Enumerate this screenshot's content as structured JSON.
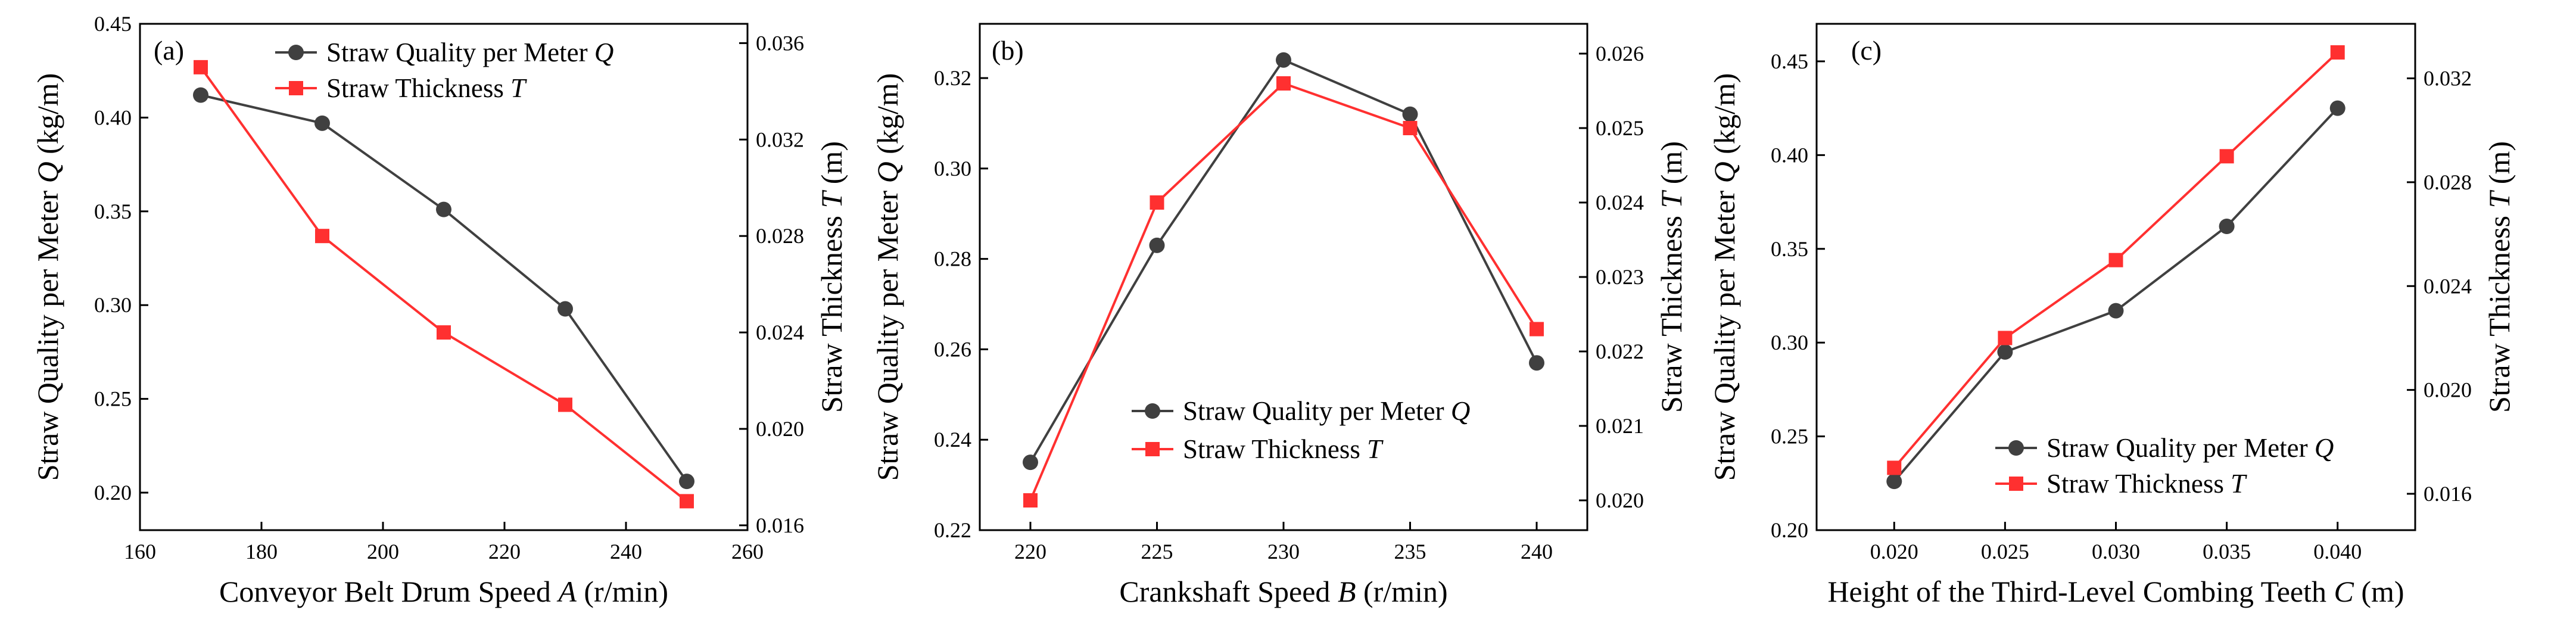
{
  "colors": {
    "quality": "#404040",
    "thickness": "#ff3030"
  },
  "chart_data": [
    {
      "type": "line",
      "panel_label": "(a)",
      "x": [
        170,
        190,
        210,
        230,
        250
      ],
      "xlabel": "Conveyor Belt Drum Speed ",
      "xlabel_var": "A",
      "xlabel_unit": " (r/min)",
      "xlim": [
        160,
        260
      ],
      "xticks": [
        160,
        180,
        200,
        220,
        240,
        260
      ],
      "xtick_labels": [
        "160",
        "180",
        "200",
        "220",
        "240",
        "260"
      ],
      "ylabel": "Straw Quality per Meter ",
      "ylabel_var": "Q",
      "ylabel_unit": " (kg/m)",
      "ylim": [
        0.18,
        0.45
      ],
      "yticks": [
        0.2,
        0.25,
        0.3,
        0.35,
        0.4,
        0.45
      ],
      "ytick_labels": [
        "0.20",
        "0.25",
        "0.30",
        "0.35",
        "0.40",
        "0.45"
      ],
      "y2label": "Straw Thickness ",
      "y2label_var": "T",
      "y2label_unit": " (m)",
      "y2lim": [
        0.0158,
        0.0368
      ],
      "y2ticks": [
        0.016,
        0.02,
        0.024,
        0.028,
        0.032,
        0.036
      ],
      "y2tick_labels": [
        "0.016",
        "0.020",
        "0.024",
        "0.028",
        "0.032",
        "0.036"
      ],
      "legend_position": "top-right",
      "series": [
        {
          "name": "Straw Quality per Meter ",
          "var": "Q",
          "axis": "left",
          "marker": "circle",
          "values": [
            0.412,
            0.397,
            0.351,
            0.298,
            0.206
          ]
        },
        {
          "name": "Straw Thickness ",
          "var": "T",
          "axis": "right",
          "marker": "square",
          "values": [
            0.035,
            0.028,
            0.024,
            0.021,
            0.017
          ]
        }
      ]
    },
    {
      "type": "line",
      "panel_label": "(b)",
      "x": [
        220,
        225,
        230,
        235,
        240
      ],
      "xlabel": "Crankshaft Speed ",
      "xlabel_var": "B",
      "xlabel_unit": " (r/min)",
      "xlim": [
        218,
        242
      ],
      "xticks": [
        220,
        225,
        230,
        235,
        240
      ],
      "xtick_labels": [
        "220",
        "225",
        "230",
        "235",
        "240"
      ],
      "ylabel": "Straw Quality per Meter ",
      "ylabel_var": "Q",
      "ylabel_unit": " (kg/m)",
      "ylim": [
        0.22,
        0.332
      ],
      "yticks": [
        0.22,
        0.24,
        0.26,
        0.28,
        0.3,
        0.32
      ],
      "ytick_labels": [
        "0.22",
        "0.24",
        "0.26",
        "0.28",
        "0.30",
        "0.32"
      ],
      "y2label": "Straw Thickness ",
      "y2label_var": "T",
      "y2label_unit": " (m)",
      "y2lim": [
        0.0196,
        0.0264
      ],
      "y2ticks": [
        0.02,
        0.021,
        0.022,
        0.023,
        0.024,
        0.025,
        0.026
      ],
      "y2tick_labels": [
        "0.020",
        "0.021",
        "0.022",
        "0.023",
        "0.024",
        "0.025",
        "0.026"
      ],
      "legend_position": "bottom-right",
      "series": [
        {
          "name": "Straw Quality per Meter ",
          "var": "Q",
          "axis": "left",
          "marker": "circle",
          "values": [
            0.235,
            0.283,
            0.324,
            0.312,
            0.257
          ]
        },
        {
          "name": "Straw Thickness ",
          "var": "T",
          "axis": "right",
          "marker": "square",
          "values": [
            0.02,
            0.024,
            0.0256,
            0.025,
            0.0223
          ]
        }
      ]
    },
    {
      "type": "line",
      "panel_label": "(c)",
      "x": [
        0.02,
        0.025,
        0.03,
        0.035,
        0.04
      ],
      "xlabel": "Height of the Third-Level Combing Teeth ",
      "xlabel_var": "C",
      "xlabel_unit": " (m)",
      "xlim": [
        0.0165,
        0.0435
      ],
      "xticks": [
        0.02,
        0.025,
        0.03,
        0.035,
        0.04
      ],
      "xtick_labels": [
        "0.020",
        "0.025",
        "0.030",
        "0.035",
        "0.040"
      ],
      "ylabel": "Straw Quality per Meter ",
      "ylabel_var": "Q",
      "ylabel_unit": " (kg/m)",
      "ylim": [
        0.2,
        0.47
      ],
      "yticks": [
        0.2,
        0.25,
        0.3,
        0.35,
        0.4,
        0.45
      ],
      "ytick_labels": [
        "0.20",
        "0.25",
        "0.30",
        "0.35",
        "0.40",
        "0.45"
      ],
      "y2label": "Straw Thickness ",
      "y2label_var": "T",
      "y2label_unit": " (m)",
      "y2lim": [
        0.0146,
        0.0341
      ],
      "y2ticks": [
        0.016,
        0.02,
        0.024,
        0.028,
        0.032
      ],
      "y2tick_labels": [
        "0.016",
        "0.020",
        "0.024",
        "0.028",
        "0.032"
      ],
      "legend_position": "bottom-right",
      "series": [
        {
          "name": "Straw Quality per Meter ",
          "var": "Q",
          "axis": "left",
          "marker": "circle",
          "values": [
            0.226,
            0.295,
            0.317,
            0.362,
            0.425
          ]
        },
        {
          "name": "Straw Thickness ",
          "var": "T",
          "axis": "right",
          "marker": "square",
          "values": [
            0.017,
            0.022,
            0.025,
            0.029,
            0.033
          ]
        }
      ]
    }
  ]
}
